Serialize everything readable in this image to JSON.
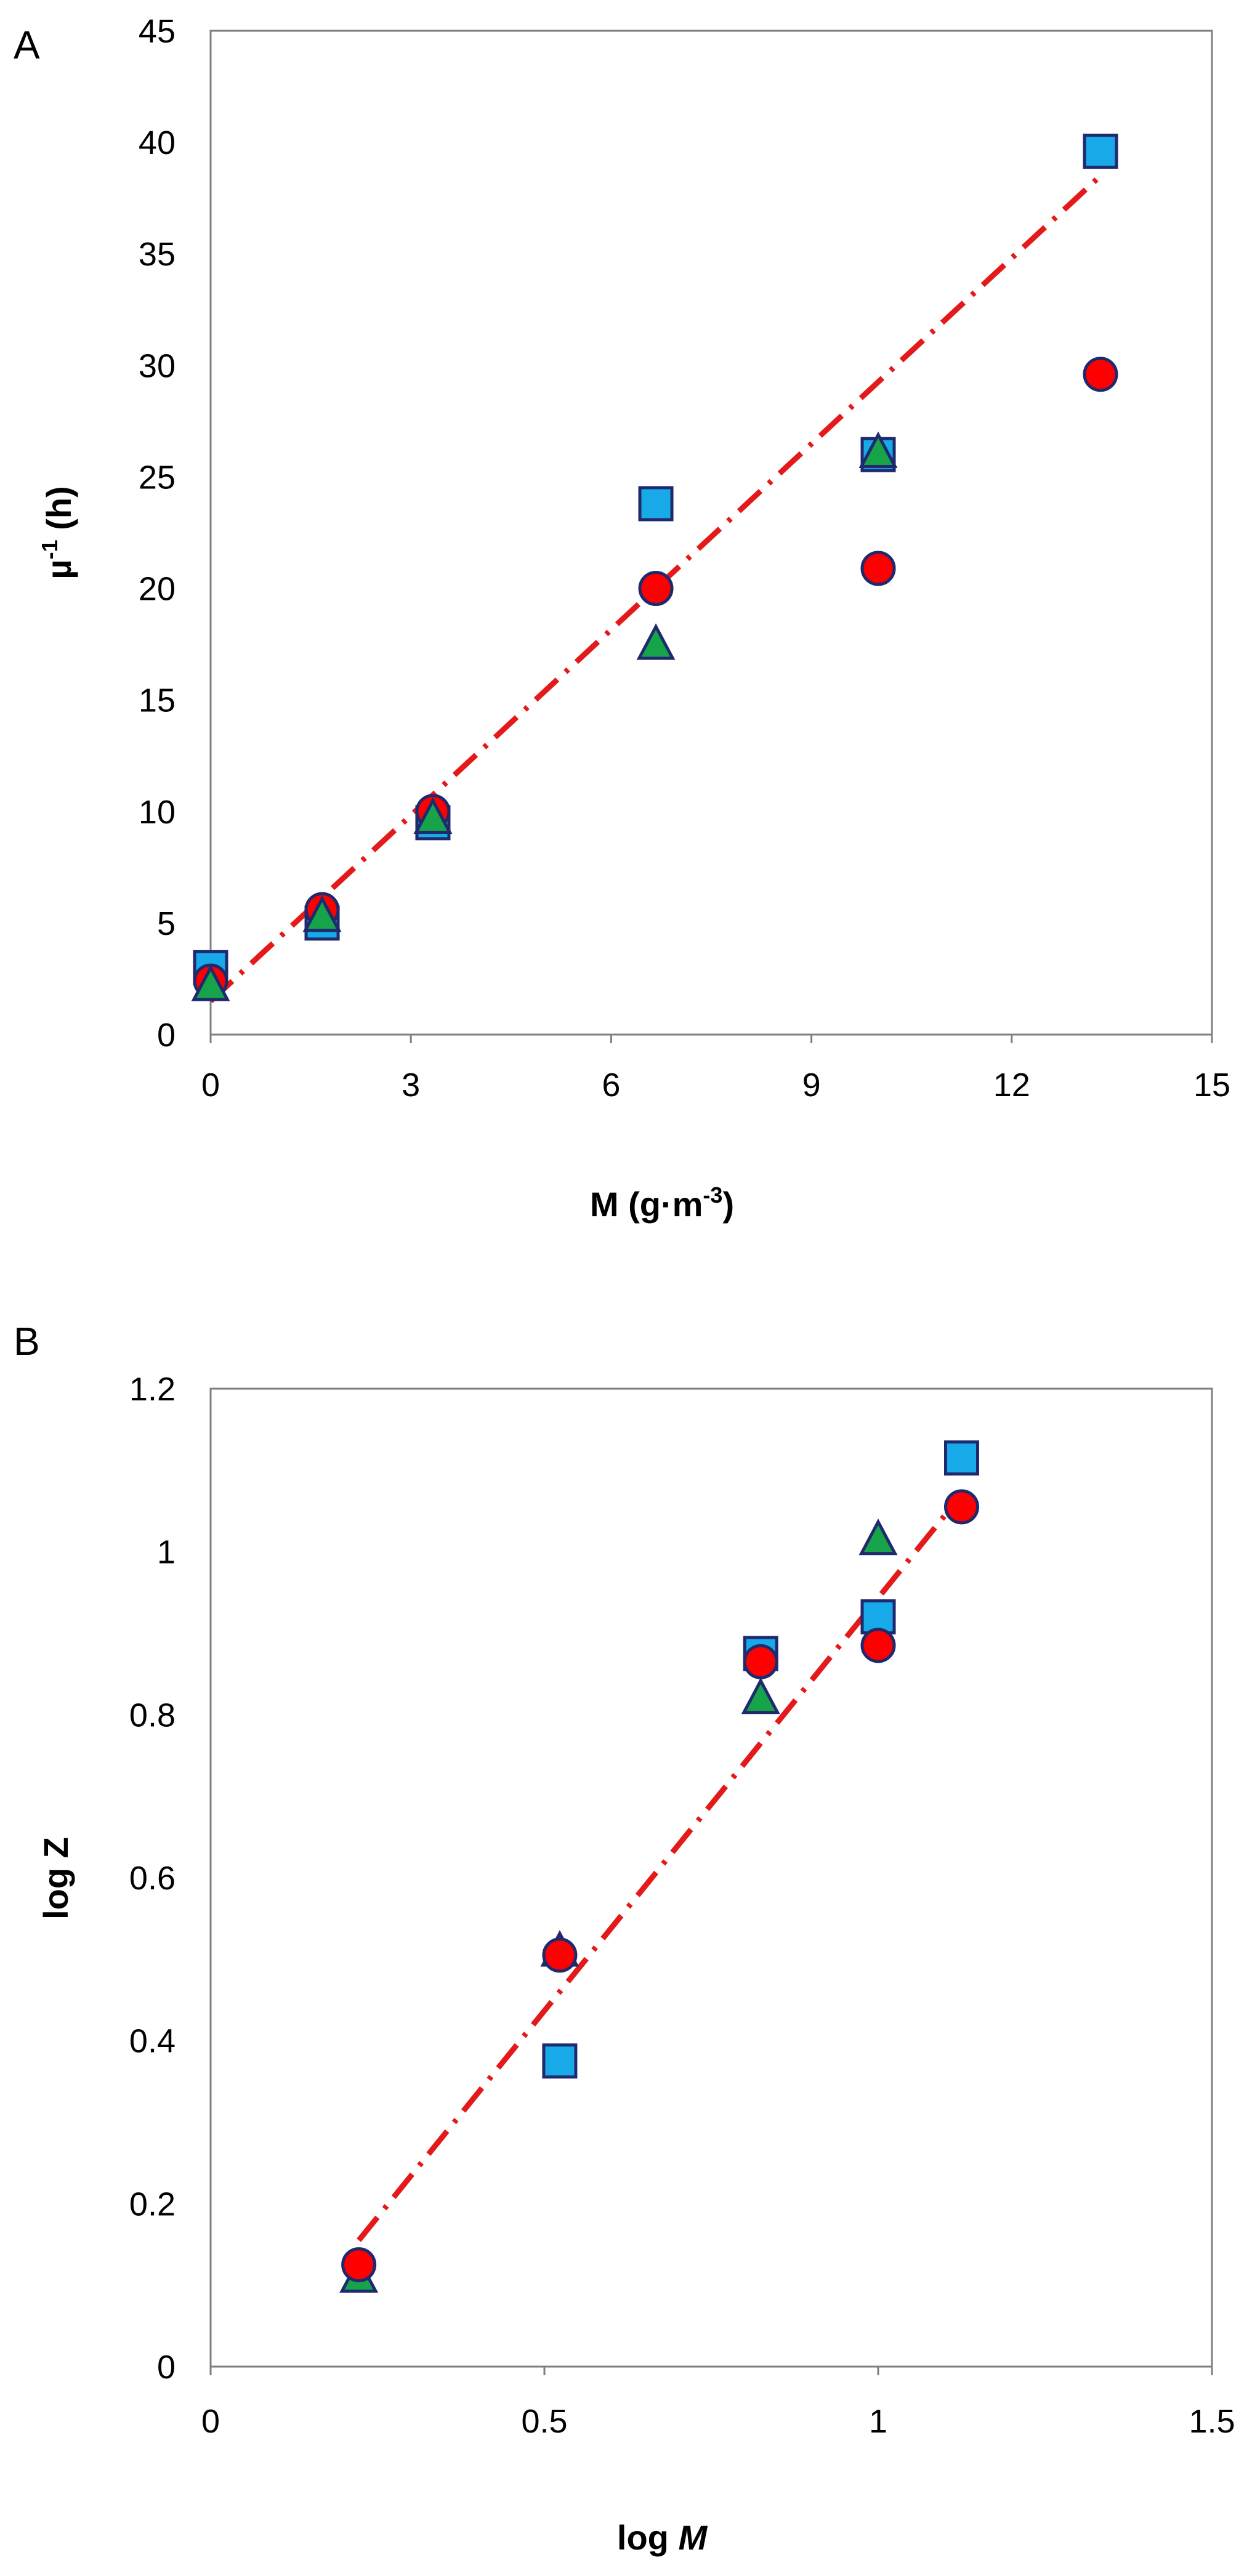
{
  "colors": {
    "circle": "#ff0000",
    "square": "#17a9e8",
    "triangle": "#16a34a",
    "marker_edge": "#1f2a6e",
    "fit_line": "#e41a1a"
  },
  "chart_data": [
    {
      "type": "scatter",
      "panel_label": "A",
      "title": "",
      "xlabel": "M (g·m",
      "xlabel_sup": "-3",
      "xlabel_end": ")",
      "ylabel": "µ",
      "ylabel_sup": "-1",
      "ylabel_end": " (h)",
      "xlim": [
        0,
        15
      ],
      "ylim": [
        0,
        45
      ],
      "xticks": [
        0,
        3,
        6,
        9,
        12,
        15
      ],
      "yticks": [
        0,
        5,
        10,
        15,
        20,
        25,
        30,
        35,
        40,
        45
      ],
      "grid": false,
      "series": [
        {
          "marker": "square",
          "x": [
            0,
            1.67,
            3.33,
            6.67,
            10,
            13.33
          ],
          "y": [
            3.0,
            5.0,
            9.5,
            23.8,
            26.0,
            39.6
          ]
        },
        {
          "marker": "circle",
          "x": [
            0,
            1.67,
            3.33,
            6.67,
            10,
            13.33
          ],
          "y": [
            2.4,
            5.6,
            10.0,
            20.0,
            20.9,
            29.6
          ]
        },
        {
          "marker": "triangle",
          "x": [
            0,
            1.67,
            3.33,
            6.67,
            10
          ],
          "y": [
            2.2,
            5.3,
            9.7,
            17.5,
            26.1
          ]
        }
      ],
      "fit_line": {
        "x": [
          0,
          13.33
        ],
        "y": [
          1.5,
          38.5
        ]
      }
    },
    {
      "type": "scatter",
      "panel_label": "B",
      "title": "",
      "xlabel": "log ",
      "xlabel_italic": "M",
      "ylabel": "log Z",
      "xlim": [
        0,
        1.5
      ],
      "ylim": [
        0,
        1.2
      ],
      "xticks": [
        0,
        0.5,
        1,
        1.5
      ],
      "yticks": [
        0,
        0.2,
        0.4,
        0.6,
        0.8,
        1,
        1.2
      ],
      "grid": false,
      "series": [
        {
          "marker": "square",
          "x": [
            0.523,
            0.824,
            1.0,
            1.125
          ],
          "y": [
            0.375,
            0.875,
            0.92,
            1.115
          ]
        },
        {
          "marker": "triangle",
          "x": [
            0.222,
            0.523,
            0.824,
            1.0
          ],
          "y": [
            0.11,
            0.51,
            0.82,
            1.015
          ]
        },
        {
          "marker": "circle",
          "x": [
            0.222,
            0.523,
            0.824,
            1.0,
            1.125
          ],
          "y": [
            0.125,
            0.505,
            0.865,
            0.885,
            1.055
          ]
        }
      ],
      "fit_line": {
        "x": [
          0.222,
          1.125
        ],
        "y": [
          0.155,
          1.07
        ]
      }
    }
  ]
}
